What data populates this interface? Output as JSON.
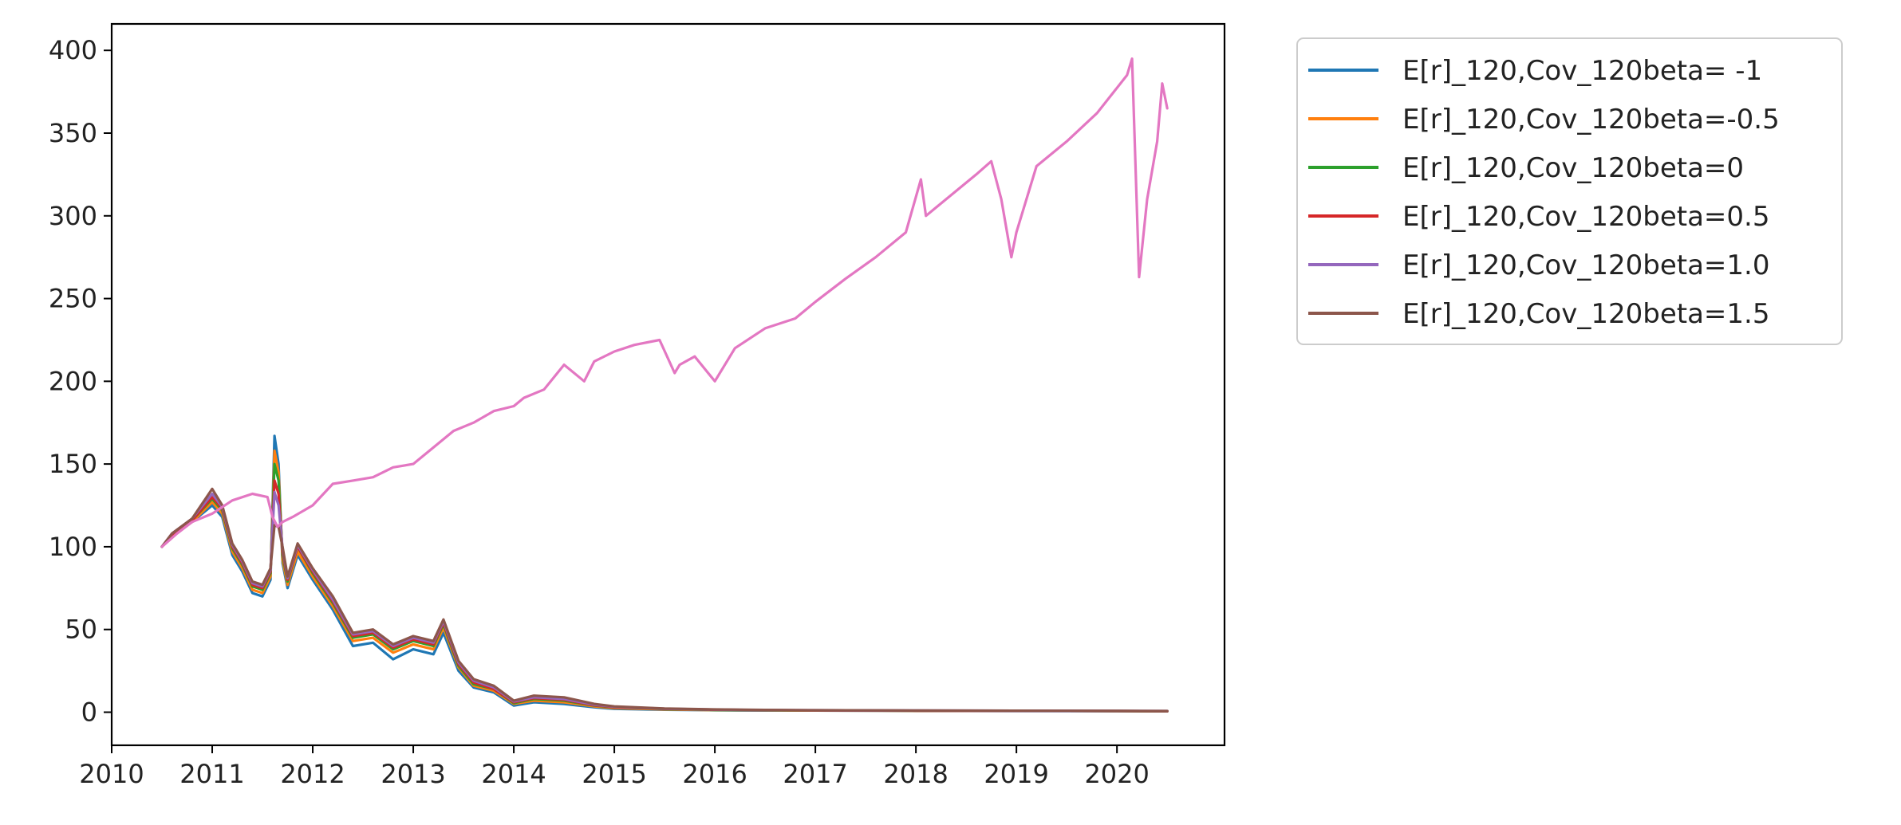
{
  "chart_data": {
    "type": "line",
    "title": "",
    "xlabel": "",
    "ylabel": "",
    "xlim": [
      2010.0,
      2021.07
    ],
    "ylim": [
      -20,
      416
    ],
    "grid": false,
    "legend_placement": "outside-upper-right",
    "xticks": [
      2010,
      2011,
      2012,
      2013,
      2014,
      2015,
      2016,
      2017,
      2018,
      2019,
      2020
    ],
    "xtick_labels": [
      "2010",
      "2011",
      "2012",
      "2013",
      "2014",
      "2015",
      "2016",
      "2017",
      "2018",
      "2019",
      "2020"
    ],
    "yticks": [
      0,
      50,
      100,
      150,
      200,
      250,
      300,
      350,
      400
    ],
    "ytick_labels": [
      "0",
      "50",
      "100",
      "150",
      "200",
      "250",
      "300",
      "350",
      "400"
    ],
    "x": [
      2010.5,
      2010.6,
      2010.8,
      2011.0,
      2011.1,
      2011.2,
      2011.3,
      2011.4,
      2011.5,
      2011.58,
      2011.62,
      2011.66,
      2011.7,
      2011.75,
      2011.85,
      2012.0,
      2012.2,
      2012.4,
      2012.6,
      2012.8,
      2013.0,
      2013.2,
      2013.3,
      2013.45,
      2013.6,
      2013.8,
      2014.0,
      2014.2,
      2014.5,
      2014.8,
      2015.0,
      2015.5,
      2016.0,
      2016.5,
      2017.0,
      2018.0,
      2019.0,
      2020.0,
      2020.5
    ],
    "series": [
      {
        "name": "E[r]_120,Cov_120beta= -1",
        "color": "#1f77b4",
        "values": [
          100,
          107,
          115,
          125,
          118,
          95,
          85,
          72,
          70,
          80,
          167,
          150,
          90,
          75,
          95,
          80,
          62,
          40,
          42,
          32,
          38,
          35,
          48,
          25,
          15,
          12,
          4,
          6,
          5,
          3,
          2,
          1.5,
          1.2,
          1.0,
          1.0,
          0.8,
          0.7,
          0.6,
          0.5
        ]
      },
      {
        "name": "E[r]_120,Cov_120beta=-0.5",
        "color": "#ff7f0e",
        "values": [
          100,
          107,
          115,
          127,
          120,
          97,
          87,
          74,
          72,
          82,
          158,
          145,
          92,
          77,
          97,
          82,
          64,
          43,
          45,
          36,
          41,
          38,
          51,
          27,
          16,
          13,
          5,
          7,
          6,
          3.5,
          2.5,
          1.7,
          1.3,
          1.1,
          1.0,
          0.9,
          0.8,
          0.7,
          0.6
        ]
      },
      {
        "name": "E[r]_120,Cov_120beta=0",
        "color": "#2ca02c",
        "values": [
          100,
          107,
          116,
          129,
          122,
          99,
          89,
          76,
          74,
          84,
          150,
          140,
          95,
          79,
          100,
          84,
          66,
          45,
          47,
          38,
          43,
          40,
          53,
          28,
          17,
          14,
          5.5,
          8,
          7,
          4,
          3,
          1.9,
          1.4,
          1.2,
          1.1,
          0.9,
          0.8,
          0.7,
          0.6
        ]
      },
      {
        "name": "E[r]_120,Cov_120beta=0.5",
        "color": "#d62728",
        "values": [
          100,
          107,
          116,
          130,
          123,
          100,
          90,
          77,
          75,
          85,
          140,
          132,
          97,
          80,
          100,
          85,
          67,
          46,
          48,
          39,
          44,
          41,
          54,
          29,
          18,
          14,
          6,
          8.5,
          7.5,
          4.2,
          3.1,
          2.0,
          1.5,
          1.3,
          1.1,
          0.9,
          0.8,
          0.7,
          0.6
        ]
      },
      {
        "name": "E[r]_120,Cov_120beta=1.0",
        "color": "#9467bd",
        "values": [
          100,
          108,
          117,
          132,
          124,
          101,
          91,
          78,
          76,
          86,
          133,
          125,
          99,
          81,
          101,
          86,
          68,
          47,
          49,
          40,
          45,
          42,
          55,
          30,
          19,
          15,
          6.5,
          9,
          8,
          4.5,
          3.3,
          2.1,
          1.6,
          1.3,
          1.2,
          1.0,
          0.9,
          0.8,
          0.7
        ]
      },
      {
        "name": "E[r]_120,Cov_120beta=1.5",
        "color": "#8c564b",
        "values": [
          100,
          108,
          117,
          135,
          125,
          102,
          92,
          79,
          77,
          87,
          113,
          112,
          100,
          82,
          102,
          87,
          70,
          48,
          50,
          41,
          46,
          43,
          56,
          31,
          20,
          16,
          7,
          10,
          9,
          5,
          3.5,
          2.2,
          1.7,
          1.4,
          1.2,
          1.0,
          0.9,
          0.8,
          0.7
        ]
      },
      {
        "name": "",
        "color": "#e377c2",
        "x": [
          2010.5,
          2010.65,
          2010.8,
          2011.0,
          2011.2,
          2011.4,
          2011.55,
          2011.6,
          2011.65,
          2011.7,
          2011.8,
          2012.0,
          2012.2,
          2012.4,
          2012.6,
          2012.8,
          2013.0,
          2013.2,
          2013.4,
          2013.6,
          2013.8,
          2014.0,
          2014.1,
          2014.3,
          2014.5,
          2014.7,
          2014.8,
          2015.0,
          2015.2,
          2015.45,
          2015.6,
          2015.65,
          2015.8,
          2016.0,
          2016.1,
          2016.2,
          2016.5,
          2016.8,
          2017.0,
          2017.3,
          2017.6,
          2017.9,
          2018.05,
          2018.1,
          2018.2,
          2018.4,
          2018.6,
          2018.75,
          2018.85,
          2018.95,
          2019.0,
          2019.2,
          2019.5,
          2019.8,
          2020.1,
          2020.15,
          2020.22,
          2020.3,
          2020.4,
          2020.45,
          2020.5
        ],
        "values": [
          100,
          108,
          115,
          120,
          128,
          132,
          130,
          118,
          112,
          115,
          118,
          125,
          138,
          140,
          142,
          148,
          150,
          160,
          170,
          175,
          182,
          185,
          190,
          195,
          210,
          200,
          212,
          218,
          222,
          225,
          205,
          210,
          215,
          200,
          210,
          220,
          232,
          238,
          248,
          262,
          275,
          290,
          322,
          300,
          305,
          315,
          325,
          333,
          310,
          275,
          290,
          330,
          345,
          362,
          385,
          395,
          263,
          310,
          345,
          380,
          365
        ]
      }
    ]
  }
}
